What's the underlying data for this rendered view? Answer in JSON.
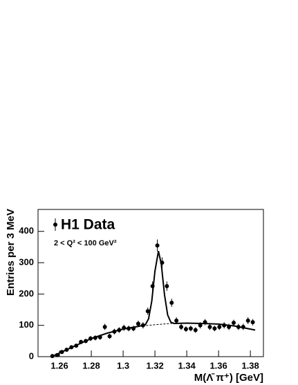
{
  "chart_data": {
    "type": "scatter",
    "xlabel": "M(Λ̄ π⁺) [GeV]",
    "ylabel": "Entries per 3 MeV",
    "legend": "H1 Data",
    "annotation": "2 < Q² < 100 GeV²",
    "color": "#000000",
    "x": [
      1.2555,
      1.2585,
      1.2615,
      1.2645,
      1.2675,
      1.2705,
      1.2735,
      1.2765,
      1.2795,
      1.2825,
      1.2855,
      1.2885,
      1.2915,
      1.2945,
      1.2975,
      1.3005,
      1.3035,
      1.3065,
      1.3095,
      1.3125,
      1.3155,
      1.3185,
      1.3215,
      1.3245,
      1.3275,
      1.3305,
      1.3335,
      1.3365,
      1.3395,
      1.3425,
      1.3455,
      1.3485,
      1.3515,
      1.3545,
      1.3575,
      1.3605,
      1.3635,
      1.3665,
      1.3695,
      1.3725,
      1.3755,
      1.3785,
      1.3815
    ],
    "values": [
      2,
      5,
      15,
      22,
      30,
      35,
      47,
      50,
      58,
      60,
      62,
      95,
      65,
      80,
      85,
      92,
      90,
      90,
      105,
      100,
      145,
      225,
      355,
      300,
      225,
      172,
      115,
      95,
      88,
      90,
      85,
      100,
      110,
      95,
      90,
      95,
      100,
      95,
      108,
      95,
      95,
      115,
      110
    ],
    "errors": [
      1,
      2,
      4,
      5,
      5,
      6,
      7,
      7,
      8,
      8,
      8,
      10,
      8,
      9,
      9,
      10,
      9,
      9,
      10,
      10,
      12,
      15,
      19,
      17,
      15,
      13,
      11,
      10,
      9,
      9,
      9,
      10,
      10,
      10,
      9,
      10,
      10,
      10,
      10,
      10,
      10,
      11,
      10
    ],
    "fit": {
      "x": [
        1.255,
        1.27,
        1.28,
        1.29,
        1.3,
        1.31,
        1.314,
        1.316,
        1.318,
        1.32,
        1.3222,
        1.324,
        1.326,
        1.328,
        1.33,
        1.332,
        1.34,
        1.35,
        1.36,
        1.37,
        1.38,
        1.383
      ],
      "values": [
        0,
        35,
        58,
        75,
        88,
        97,
        102,
        121,
        177,
        273,
        337,
        295,
        198,
        133,
        110,
        106,
        107,
        106,
        104,
        98,
        88,
        85
      ]
    },
    "background": {
      "x": [
        1.255,
        1.27,
        1.28,
        1.29,
        1.3,
        1.31,
        1.32,
        1.33,
        1.34,
        1.35,
        1.36,
        1.37,
        1.38,
        1.383
      ],
      "values": [
        0,
        35,
        58,
        75,
        88,
        97,
        102,
        106,
        107,
        106,
        104,
        98,
        88,
        85
      ]
    },
    "xlim": [
      1.2465,
      1.3882
    ],
    "ylim": [
      0,
      470
    ],
    "xticks": [
      1.26,
      1.28,
      1.3,
      1.32,
      1.34,
      1.36,
      1.38
    ],
    "yticks": [
      0,
      100,
      200,
      300,
      400
    ]
  }
}
